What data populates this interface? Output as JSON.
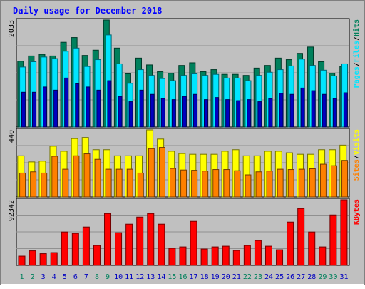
{
  "chart_data": {
    "type": "bar",
    "title": "Daily usage for December 2018",
    "categories": [
      "1",
      "2",
      "3",
      "4",
      "5",
      "6",
      "7",
      "8",
      "9",
      "10",
      "11",
      "12",
      "13",
      "14",
      "15",
      "16",
      "17",
      "18",
      "19",
      "20",
      "21",
      "22",
      "23",
      "24",
      "25",
      "26",
      "27",
      "28",
      "29",
      "30",
      "31"
    ],
    "weekend_days": [
      "1",
      "2",
      "8",
      "9",
      "15",
      "16",
      "22",
      "23",
      "29",
      "30"
    ],
    "panels": [
      {
        "id": "hits-files-pages",
        "ymax_label": "2033",
        "ymax": 2033,
        "legend": [
          "Pages",
          "/",
          "Files",
          "/",
          "Hits"
        ],
        "series": [
          {
            "name": "Hits",
            "color": "#00805c",
            "values": [
              1250,
              1350,
              1380,
              1350,
              1610,
              1700,
              1360,
              1460,
              2033,
              1500,
              1010,
              1310,
              1180,
              1050,
              1020,
              1170,
              1220,
              1050,
              1090,
              1000,
              1000,
              980,
              1120,
              1170,
              1310,
              1280,
              1400,
              1520,
              1240,
              1020,
              1150
            ]
          },
          {
            "name": "Files",
            "color": "#00e5ff",
            "values": [
              1140,
              1240,
              1330,
              1300,
              1440,
              1500,
              1150,
              1280,
              1750,
              1200,
              830,
              1090,
              980,
              920,
              880,
              980,
              1010,
              980,
              1000,
              930,
              930,
              880,
              980,
              1040,
              1090,
              1160,
              1290,
              1170,
              1080,
              970,
              1200
            ]
          },
          {
            "name": "Pages",
            "color": "#0000c0",
            "values": [
              660,
              660,
              760,
              700,
              930,
              820,
              760,
              700,
              880,
              580,
              480,
              700,
              620,
              540,
              520,
              580,
              620,
              520,
              560,
              520,
              500,
              520,
              480,
              540,
              640,
              620,
              740,
              690,
              620,
              540,
              650
            ]
          }
        ]
      },
      {
        "id": "visits-sites",
        "ymax_label": "440",
        "ymax": 440,
        "legend": [
          "Sites",
          "/",
          "Visits"
        ],
        "series": [
          {
            "name": "Visits",
            "color": "#ffff00",
            "values": [
              270,
              230,
              235,
              333,
              300,
              383,
              390,
              310,
              310,
              270,
              270,
              270,
              440,
              380,
              300,
              285,
              280,
              280,
              280,
              300,
              310,
              270,
              270,
              300,
              300,
              290,
              280,
              280,
              310,
              310,
              340
            ]
          },
          {
            "name": "Sites",
            "color": "#ff8000",
            "values": [
              157,
              165,
              157,
              267,
              182,
              270,
              283,
              247,
              182,
              182,
              182,
              157,
              317,
              325,
              187,
              177,
              175,
              170,
              180,
              180,
              172,
              145,
              165,
              170,
              182,
              180,
              182,
              185,
              215,
              205,
              240
            ]
          }
        ]
      },
      {
        "id": "kbytes",
        "ymax_label": "92342",
        "ymax": 92342,
        "legend": [
          "KBytes"
        ],
        "series": [
          {
            "name": "KBytes",
            "color": "#ff0000",
            "values": [
              13000,
              20500,
              16500,
              18000,
              47000,
              45000,
              54000,
              28000,
              73000,
              46000,
              58000,
              68000,
              73000,
              58000,
              24000,
              26000,
              62000,
              23000,
              26000,
              27000,
              21000,
              28000,
              35000,
              27000,
              22000,
              61000,
              80000,
              47000,
              26000,
              71000,
              92342
            ]
          }
        ]
      }
    ],
    "colors": {
      "background": "#c0c0c0",
      "title": "#0000ff",
      "weekday_label": "#0000c0",
      "weekend_label": "#00805c"
    }
  }
}
